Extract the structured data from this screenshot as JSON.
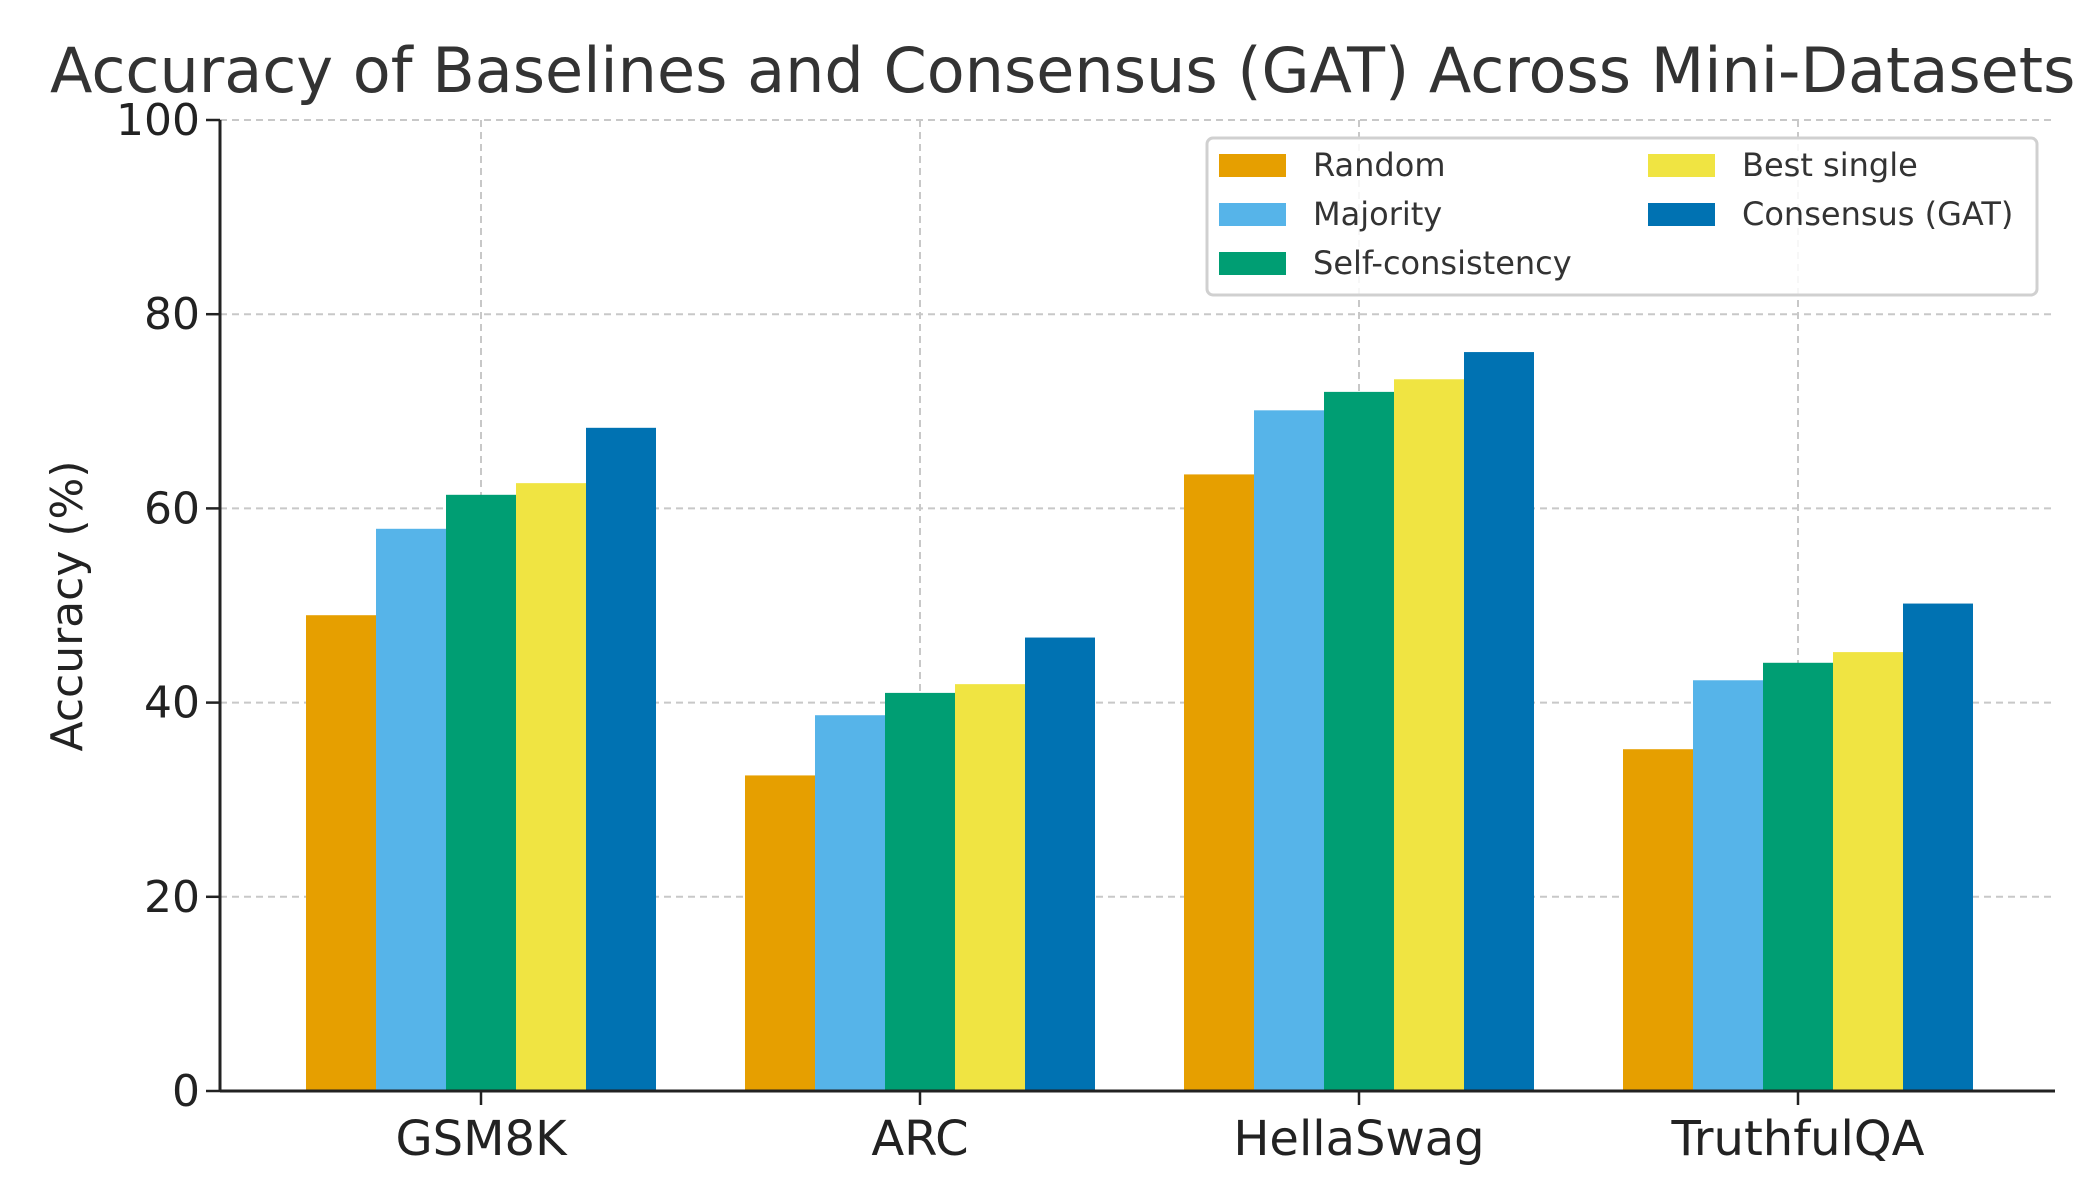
{
  "chart_data": {
    "type": "bar",
    "title": "Accuracy of Baselines and Consensus (GAT) Across Mini-Datasets",
    "xlabel": "",
    "ylabel": "Accuracy (%)",
    "ylim": [
      0,
      100
    ],
    "yticks": [
      0,
      20,
      40,
      60,
      80,
      100
    ],
    "grid": true,
    "legend_position": "top-right",
    "categories": [
      "GSM8K",
      "ARC",
      "HellaSwag",
      "TruthfulQA"
    ],
    "series": [
      {
        "name": "Random",
        "color": "#E69F00",
        "values": [
          49.0,
          32.5,
          63.5,
          35.2
        ]
      },
      {
        "name": "Majority",
        "color": "#56B4E9",
        "values": [
          57.9,
          38.7,
          70.1,
          42.3
        ]
      },
      {
        "name": "Self-consistency",
        "color": "#009E73",
        "values": [
          61.4,
          41.0,
          72.0,
          44.1
        ]
      },
      {
        "name": "Best single",
        "color": "#F0E442",
        "values": [
          62.6,
          41.9,
          73.3,
          45.2
        ]
      },
      {
        "name": "Consensus (GAT)",
        "color": "#0072B2",
        "values": [
          68.3,
          46.7,
          76.1,
          50.2
        ]
      }
    ]
  }
}
